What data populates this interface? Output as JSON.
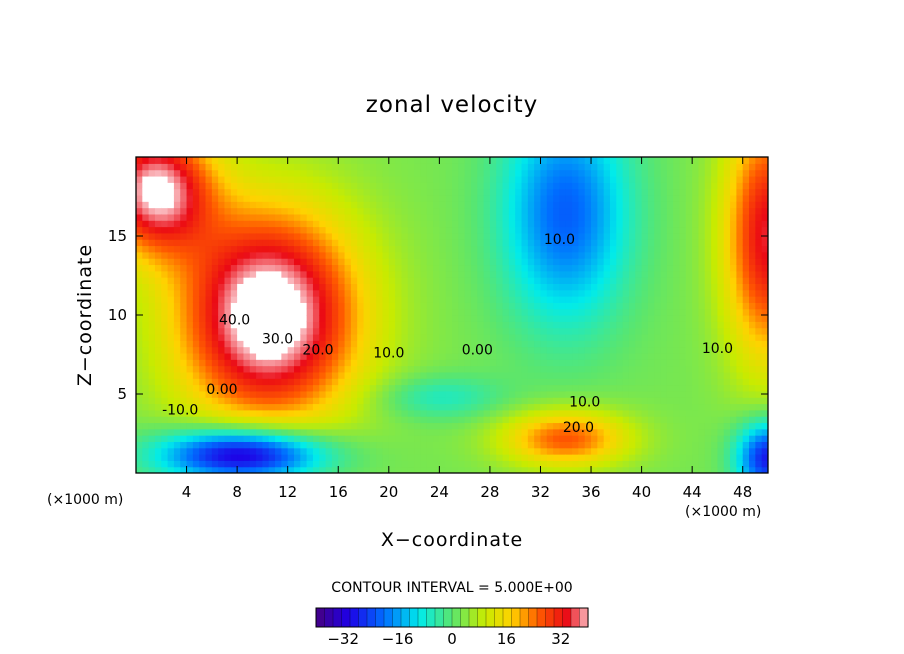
{
  "chart_data": {
    "type": "heatmap",
    "title": "zonal velocity",
    "xlabel": "X−coordinate",
    "ylabel": "Z−coordinate",
    "x_unit": "(×1000 m)",
    "y_unit": "(×1000 m)",
    "xlim": [
      0,
      50
    ],
    "ylim": [
      0,
      20
    ],
    "x_ticks": [
      4,
      8,
      12,
      16,
      20,
      24,
      28,
      32,
      36,
      40,
      44,
      48
    ],
    "y_ticks": [
      5,
      10,
      15
    ],
    "contour_interval_text": "CONTOUR INTERVAL = 5.000E+00",
    "colorbar": {
      "min": -40,
      "max": 40,
      "ticks": [
        -32,
        -16,
        0,
        16,
        32
      ],
      "tick_labels": [
        "−32",
        "−16",
        "0",
        "16",
        "32"
      ]
    },
    "contour_labels": [
      {
        "text": "40.0",
        "x": 7.8,
        "z": 9.4
      },
      {
        "text": "30.0",
        "x": 11.2,
        "z": 8.2
      },
      {
        "text": "20.0",
        "x": 14.4,
        "z": 7.5
      },
      {
        "text": "10.0",
        "x": 20.0,
        "z": 7.3
      },
      {
        "text": "0.00",
        "x": 6.8,
        "z": 5.0
      },
      {
        "text": "-10.0",
        "x": 3.5,
        "z": 3.7
      },
      {
        "text": "0.00",
        "x": 27.0,
        "z": 7.5
      },
      {
        "text": "10.0",
        "x": 33.5,
        "z": 14.5
      },
      {
        "text": "10.0",
        "x": 35.5,
        "z": 4.2
      },
      {
        "text": "20.0",
        "x": 35.0,
        "z": 2.6
      },
      {
        "text": "10.0",
        "x": 46.0,
        "z": 7.6
      }
    ],
    "features": [
      {
        "x": 10.5,
        "z": 10.0,
        "value": 44,
        "sx": 7.2,
        "sz": 6.8
      },
      {
        "x": 1.5,
        "z": 18.0,
        "value": 38,
        "sx": 4.5,
        "sz": 4.0
      },
      {
        "x": 8.5,
        "z": 1.2,
        "value": -40,
        "sx": 6.5,
        "sz": 1.7
      },
      {
        "x": 34.0,
        "z": 16.5,
        "value": -24,
        "sx": 5.0,
        "sz": 7.0
      },
      {
        "x": 34.0,
        "z": 2.2,
        "value": 24,
        "sx": 5.0,
        "sz": 1.8
      },
      {
        "x": 50.0,
        "z": 15.0,
        "value": 32,
        "sx": 3.5,
        "sz": 8.0
      },
      {
        "x": 50.0,
        "z": 1.0,
        "value": -32,
        "sx": 2.5,
        "sz": 2.3
      },
      {
        "x": 24.0,
        "z": 4.8,
        "value": -9,
        "sx": 5.0,
        "sz": 1.4
      }
    ],
    "background_value": 2.5
  }
}
